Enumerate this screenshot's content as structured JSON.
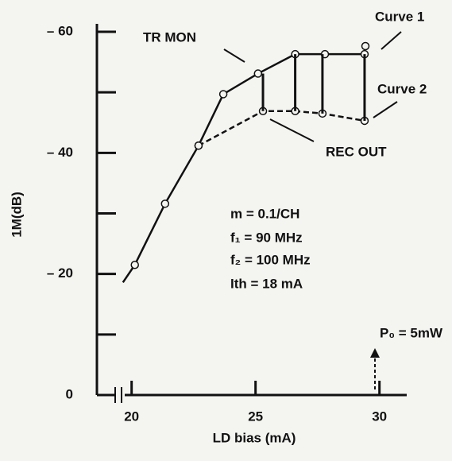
{
  "chart_data": {
    "type": "line",
    "xlabel": "LD bias (mA)",
    "ylabel": "1M(dB)",
    "xlim": [
      18.6,
      31.1
    ],
    "xticks": [
      20,
      25,
      30
    ],
    "ylim": [
      0,
      -60
    ],
    "yticks": [
      {
        "value": 0,
        "label": "0"
      },
      {
        "value": -20,
        "label": "– 20"
      },
      {
        "value": -40,
        "label": "– 40"
      },
      {
        "value": -60,
        "label": "– 60"
      }
    ],
    "yminor": [
      -10,
      -30,
      -50
    ],
    "marker": "circle",
    "series": [
      {
        "name": "Curve 1",
        "color": "#111111",
        "dash": false,
        "x": [
          19.65,
          20.13,
          21.35,
          22.7,
          23.7,
          25.1,
          26.6,
          27.8,
          29.4
        ],
        "values": [
          -18.6,
          -21.5,
          -31.6,
          -41.2,
          -49.7,
          -53.1,
          -56.3,
          -56.3,
          -56.3
        ]
      },
      {
        "name": "Curve 2",
        "color": "#111111",
        "dash": true,
        "x": [
          22.7,
          25.3,
          26.6,
          27.7,
          29.4
        ],
        "values": [
          -41.2,
          -46.9,
          -46.9,
          -46.5,
          -45.3
        ]
      }
    ],
    "annotations": [
      "TR MON",
      "REC OUT",
      "m = 0.1/CH",
      "f₁ = 90 MHz",
      "f₂ = 100 MHz",
      "Ith = 18 mA",
      "P₀ = 5mW"
    ]
  }
}
